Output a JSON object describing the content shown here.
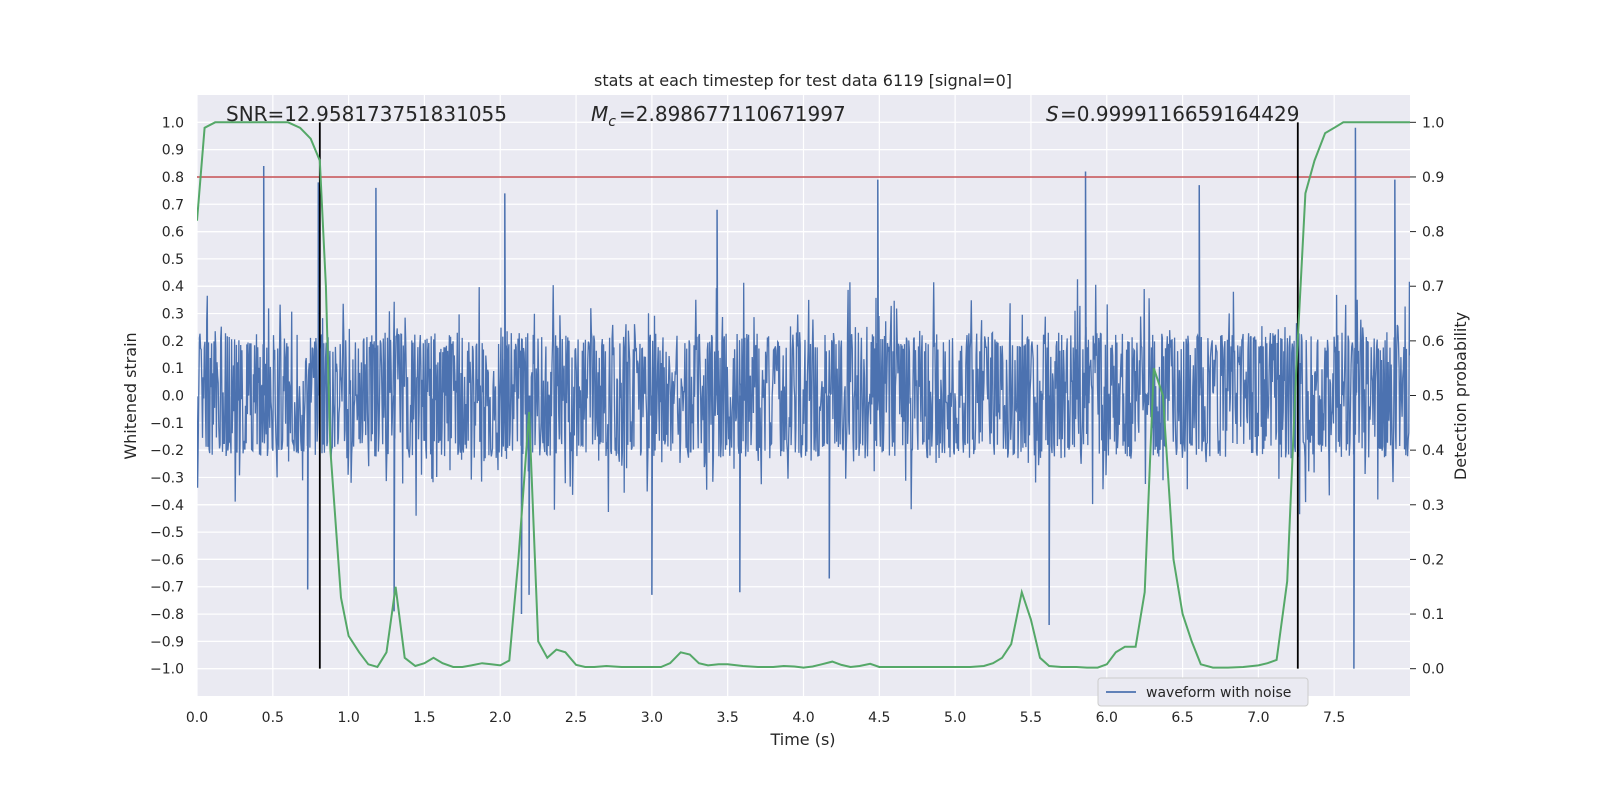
{
  "chart_data": {
    "type": "line",
    "title": "stats at each timestep for test data 6119 [signal=0]",
    "xlabel": "Time (s)",
    "ylabel_left": "Whitened strain",
    "ylabel_right": "Detection probability",
    "xlim": [
      0.0,
      8.0
    ],
    "ylim_left": [
      -1.1,
      1.1
    ],
    "ylim_right": [
      -0.05,
      1.05
    ],
    "x_ticks": [
      "0.0",
      "0.5",
      "1.0",
      "1.5",
      "2.0",
      "2.5",
      "3.0",
      "3.5",
      "4.0",
      "4.5",
      "5.0",
      "5.5",
      "6.0",
      "6.5",
      "7.0",
      "7.5"
    ],
    "left_ticks": [
      "1.0",
      "0.9",
      "0.8",
      "0.7",
      "0.6",
      "0.5",
      "0.4",
      "0.3",
      "0.2",
      "0.1",
      "0.0",
      "−0.1",
      "−0.2",
      "−0.3",
      "−0.4",
      "−0.5",
      "−0.6",
      "−0.7",
      "−0.8",
      "−0.9",
      "−1.0"
    ],
    "right_ticks": [
      "1.0",
      "0.9",
      "0.8",
      "0.7",
      "0.6",
      "0.5",
      "0.4",
      "0.3",
      "0.2",
      "0.1",
      "0.0"
    ],
    "grid": true,
    "legend": {
      "label": "waveform with noise",
      "placement": "lower-right"
    },
    "annotations": {
      "snr": "SNR=12.958173751831055",
      "mc": "=2.898677110671997",
      "s": "=0.9999116659164429"
    },
    "threshold_probability": 0.9,
    "vertical_markers_x": [
      0.81,
      7.26
    ],
    "series": [
      {
        "name": "waveform with noise",
        "axis": "left",
        "color": "#4c72b0",
        "kind": "dense-noise",
        "core_amplitude": 0.2,
        "typical_envelope": [
          -0.45,
          0.45
        ],
        "peaks": [
          {
            "x": 0.44,
            "y": 0.84
          },
          {
            "x": 0.8,
            "y": 0.78
          },
          {
            "x": 1.18,
            "y": 0.76
          },
          {
            "x": 2.03,
            "y": 0.74
          },
          {
            "x": 3.43,
            "y": 0.68
          },
          {
            "x": 4.49,
            "y": 0.79
          },
          {
            "x": 5.86,
            "y": 0.82
          },
          {
            "x": 6.61,
            "y": 0.77
          },
          {
            "x": 7.64,
            "y": 0.98
          },
          {
            "x": 7.9,
            "y": 0.79
          },
          {
            "x": 0.73,
            "y": -0.71
          },
          {
            "x": 1.3,
            "y": -0.79
          },
          {
            "x": 2.14,
            "y": -0.8
          },
          {
            "x": 2.19,
            "y": -0.73
          },
          {
            "x": 3.0,
            "y": -0.73
          },
          {
            "x": 3.58,
            "y": -0.72
          },
          {
            "x": 4.17,
            "y": -0.67
          },
          {
            "x": 5.62,
            "y": -0.84
          },
          {
            "x": 7.63,
            "y": -1.0
          }
        ]
      },
      {
        "name": "detection probability",
        "axis": "right",
        "color": "#55a868",
        "x": [
          0.0,
          0.05,
          0.12,
          0.2,
          0.3,
          0.4,
          0.5,
          0.6,
          0.68,
          0.75,
          0.81,
          0.85,
          0.88,
          0.95,
          1.0,
          1.07,
          1.13,
          1.19,
          1.25,
          1.31,
          1.37,
          1.44,
          1.5,
          1.56,
          1.62,
          1.69,
          1.75,
          1.81,
          1.88,
          1.94,
          2.0,
          2.06,
          2.12,
          2.19,
          2.25,
          2.31,
          2.37,
          2.43,
          2.5,
          2.56,
          2.62,
          2.7,
          2.8,
          2.9,
          3.0,
          3.06,
          3.12,
          3.19,
          3.25,
          3.31,
          3.37,
          3.44,
          3.5,
          3.6,
          3.7,
          3.8,
          3.87,
          3.94,
          4.0,
          4.06,
          4.12,
          4.19,
          4.25,
          4.31,
          4.37,
          4.44,
          4.5,
          4.56,
          4.7,
          4.9,
          5.0,
          5.1,
          5.19,
          5.25,
          5.31,
          5.37,
          5.44,
          5.5,
          5.56,
          5.62,
          5.7,
          5.8,
          5.87,
          5.94,
          6.0,
          6.06,
          6.12,
          6.19,
          6.25,
          6.31,
          6.37,
          6.44,
          6.5,
          6.56,
          6.62,
          6.7,
          6.8,
          6.9,
          7.0,
          7.06,
          7.12,
          7.19,
          7.25,
          7.31,
          7.37,
          7.44,
          7.5,
          7.56,
          7.62,
          7.7,
          7.8,
          7.9,
          8.0
        ],
        "y": [
          0.82,
          0.99,
          1.0,
          1.0,
          1.0,
          1.0,
          1.0,
          1.0,
          0.99,
          0.97,
          0.93,
          0.7,
          0.4,
          0.13,
          0.06,
          0.03,
          0.008,
          0.003,
          0.03,
          0.15,
          0.02,
          0.005,
          0.01,
          0.02,
          0.01,
          0.003,
          0.003,
          0.006,
          0.01,
          0.008,
          0.006,
          0.015,
          0.2,
          0.47,
          0.05,
          0.02,
          0.035,
          0.03,
          0.007,
          0.003,
          0.003,
          0.005,
          0.003,
          0.003,
          0.003,
          0.003,
          0.01,
          0.03,
          0.026,
          0.01,
          0.006,
          0.008,
          0.008,
          0.005,
          0.003,
          0.003,
          0.005,
          0.004,
          0.002,
          0.004,
          0.008,
          0.013,
          0.007,
          0.003,
          0.005,
          0.009,
          0.003,
          0.003,
          0.003,
          0.003,
          0.003,
          0.003,
          0.005,
          0.01,
          0.02,
          0.045,
          0.14,
          0.09,
          0.02,
          0.005,
          0.003,
          0.003,
          0.002,
          0.002,
          0.008,
          0.03,
          0.04,
          0.04,
          0.14,
          0.55,
          0.5,
          0.2,
          0.1,
          0.05,
          0.008,
          0.002,
          0.002,
          0.003,
          0.006,
          0.01,
          0.016,
          0.16,
          0.55,
          0.87,
          0.93,
          0.98,
          0.99,
          1.0,
          1.0,
          1.0,
          1.0,
          1.0,
          1.0
        ]
      }
    ]
  }
}
